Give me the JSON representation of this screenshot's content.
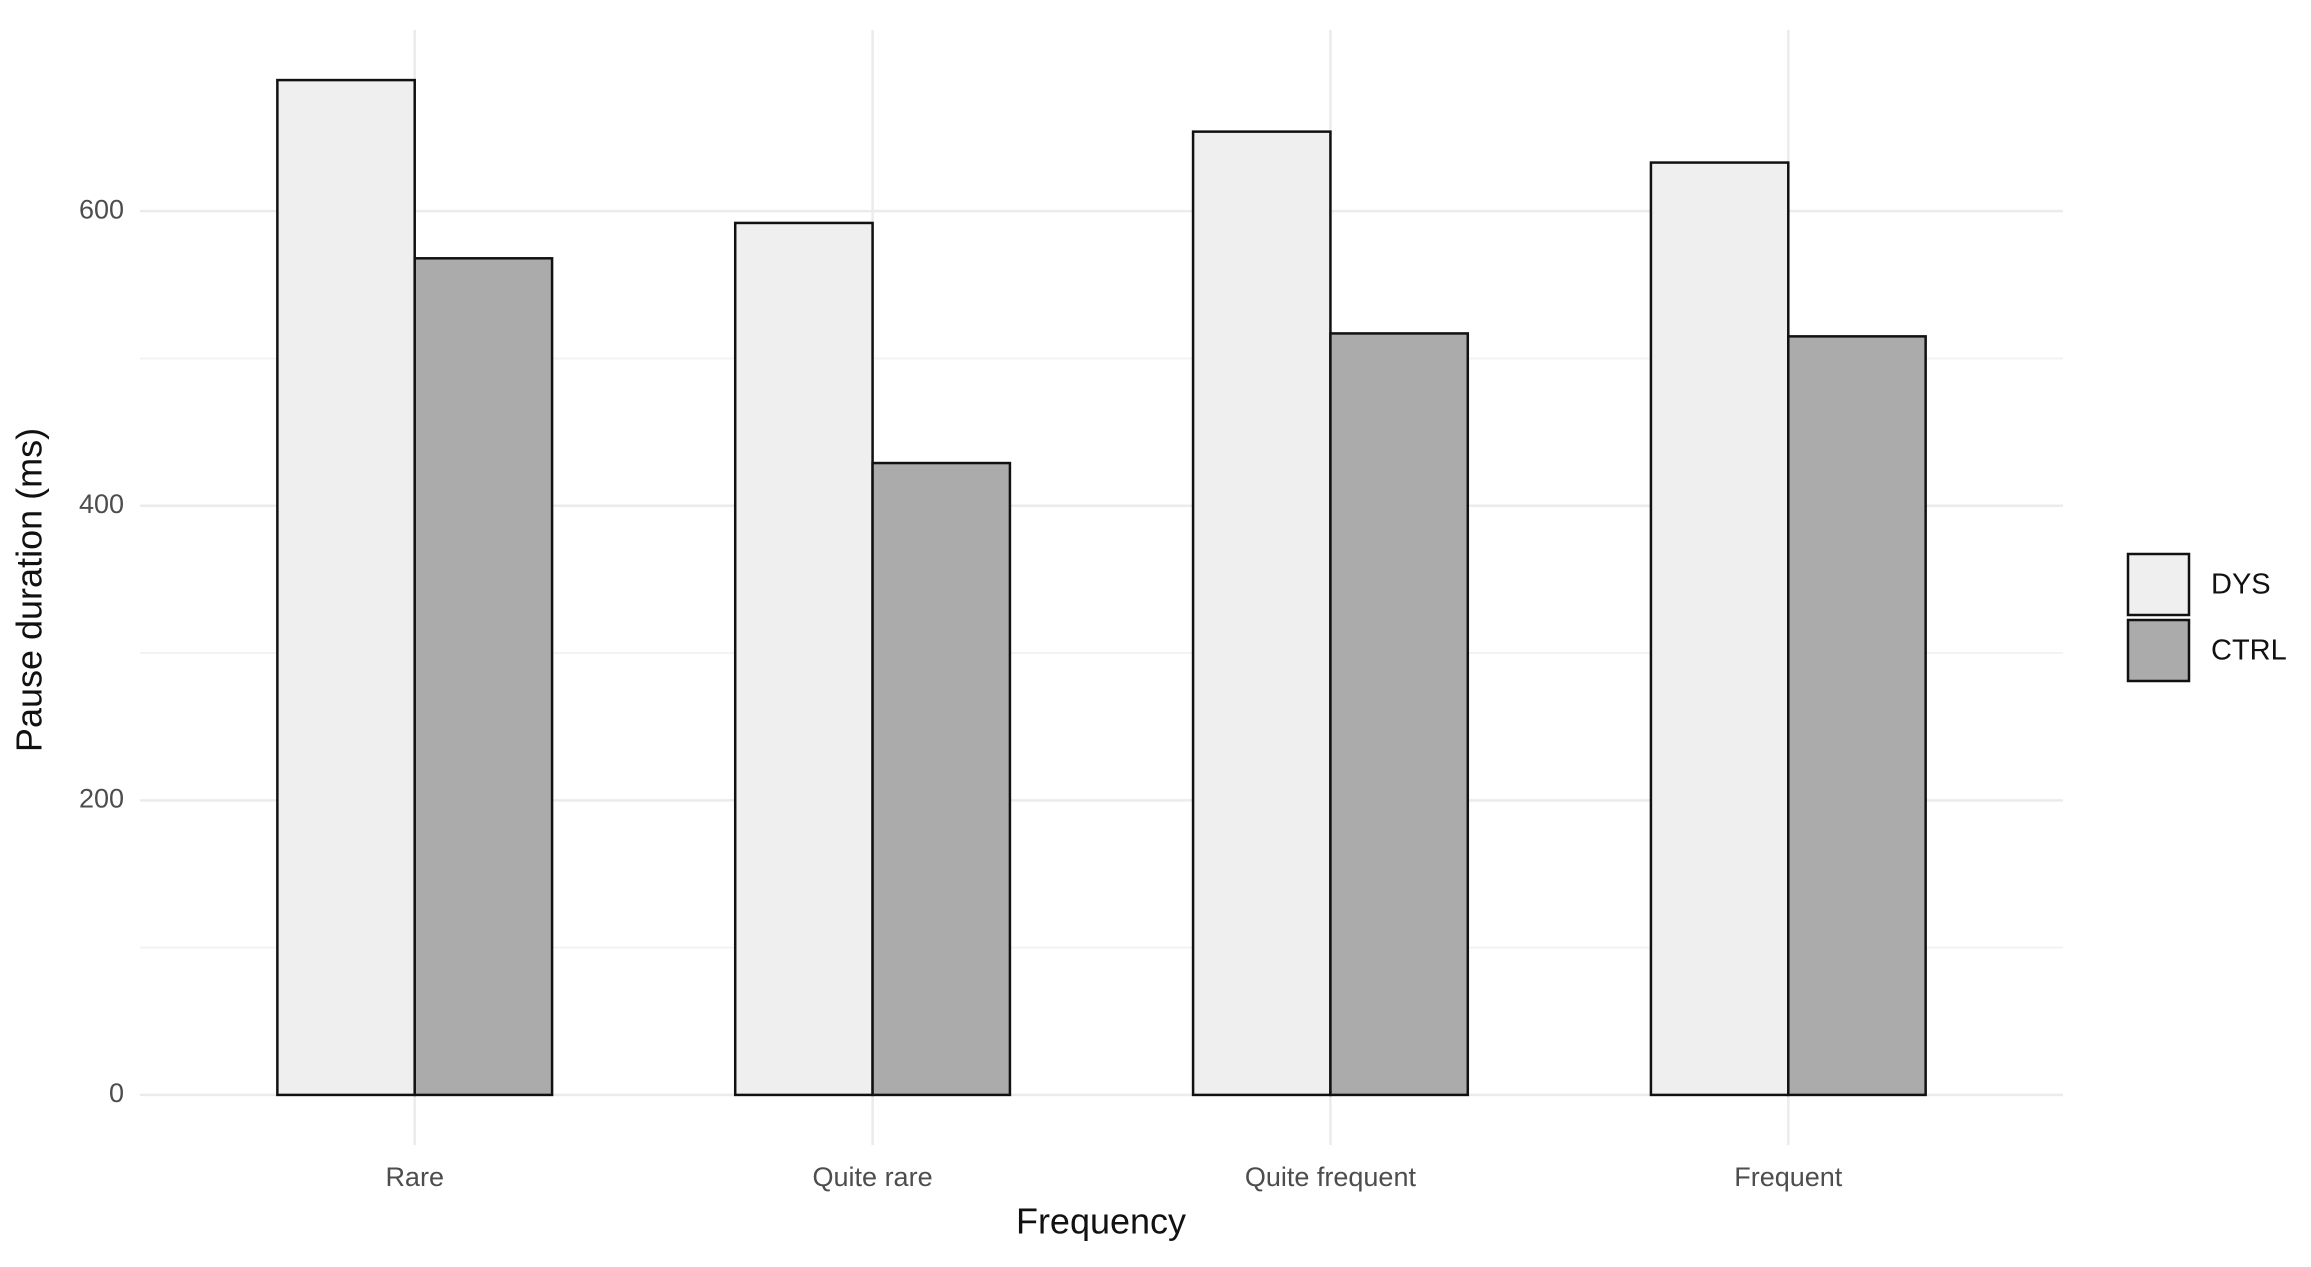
{
  "chart_data": {
    "type": "bar",
    "x_label": "Frequency",
    "y_label": "Pause duration (ms)",
    "categories": [
      "Rare",
      "Quite rare",
      "Quite frequent",
      "Frequent"
    ],
    "series": [
      {
        "name": "DYS",
        "color": "#efefef",
        "values": [
          689,
          592,
          654,
          633
        ]
      },
      {
        "name": "CTRL",
        "color": "#ababab",
        "values": [
          568,
          429,
          517,
          515
        ]
      }
    ],
    "ylim": [
      -34,
      723
    ],
    "yticks": [
      0,
      200,
      400,
      600
    ],
    "minor_yticks": [
      100,
      300,
      500
    ],
    "grid": true,
    "legend": "right",
    "bar_outline": "#111111"
  }
}
